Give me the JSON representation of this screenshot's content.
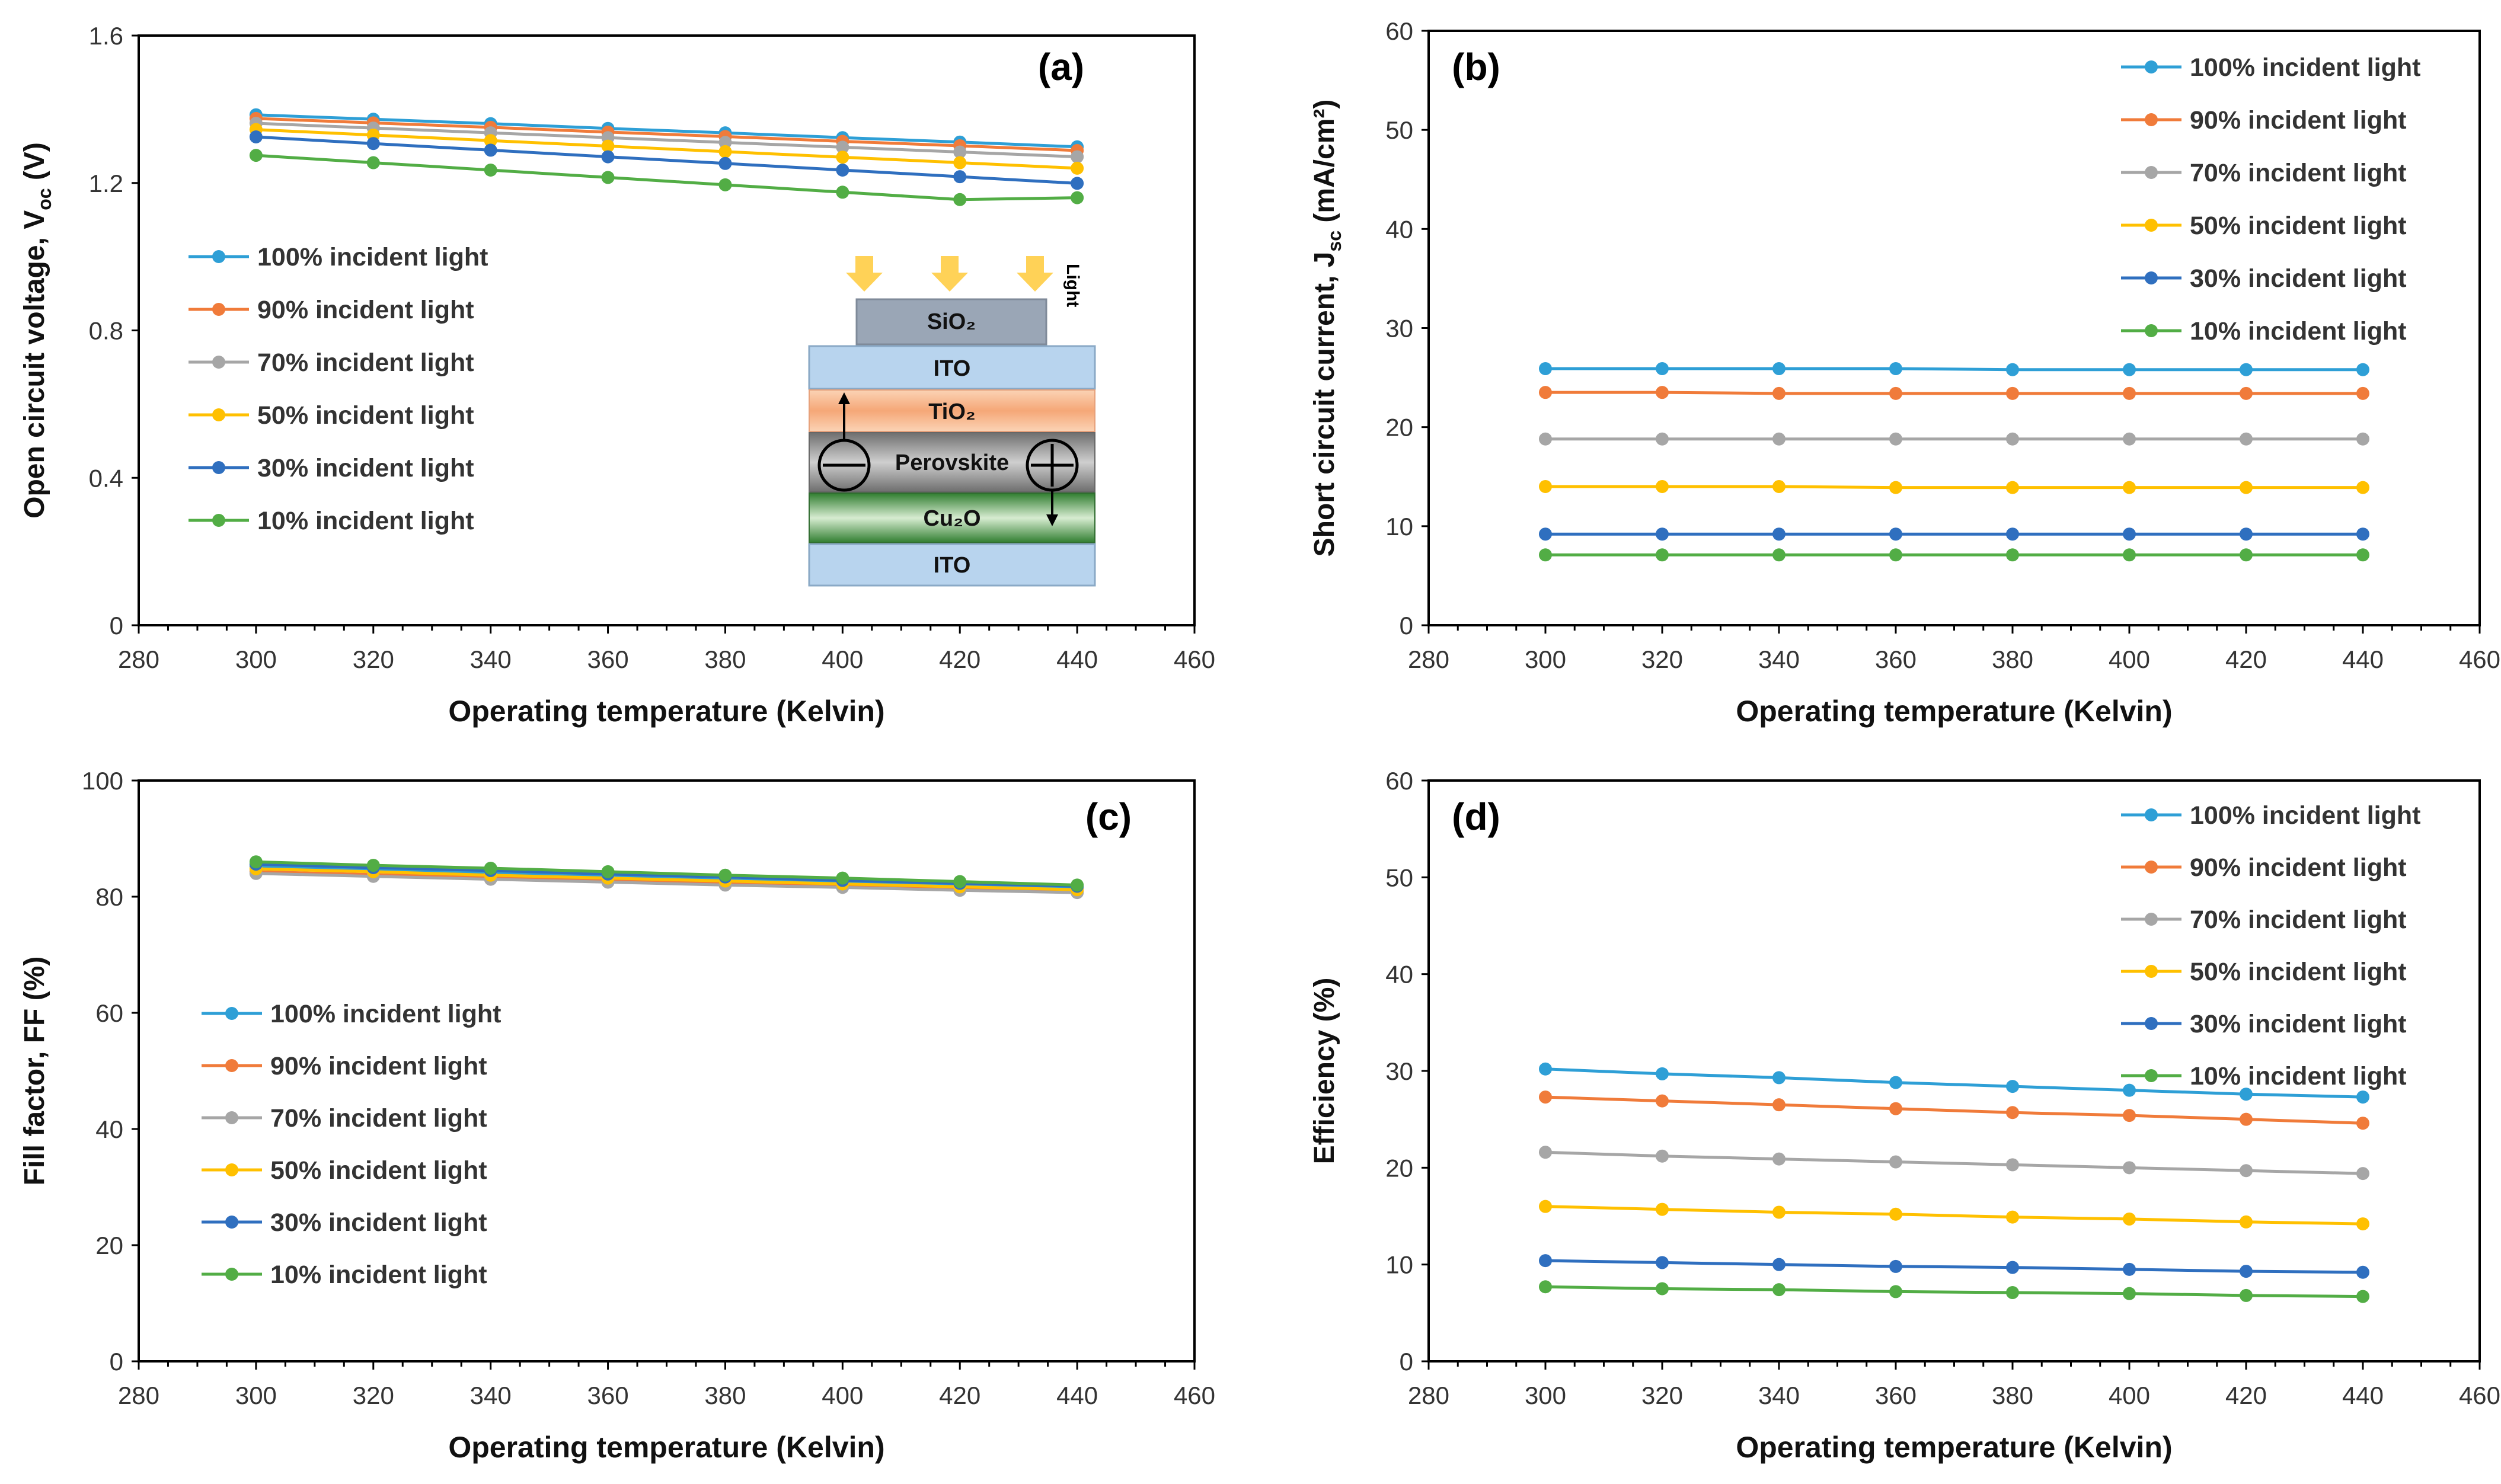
{
  "series_names": [
    "100% incident light",
    "90% incident light",
    "70% incident light",
    "50% incident light",
    "30% incident light",
    "10% incident light"
  ],
  "series_colors": [
    "#2e9fd6",
    "#f07b3a",
    "#a6a6a6",
    "#ffc000",
    "#2f6fbf",
    "#52ad45"
  ],
  "chart_data": [
    {
      "panel_label": "(a)",
      "type": "line",
      "xlabel": "Operating temperature (Kelvin)",
      "ylabel": "Open circuit voltage, V",
      "ylabel_sub": "oc",
      "ylabel_suffix": " (V)",
      "xlim": [
        280,
        460
      ],
      "ylim": [
        0,
        1.6
      ],
      "xticks": [
        280,
        300,
        320,
        340,
        360,
        380,
        400,
        420,
        440,
        460
      ],
      "yticks": [
        0,
        0.4,
        0.8,
        1.2,
        1.6
      ],
      "ytick_labels": [
        "0",
        "0.4",
        "0.8",
        "1.2",
        "1.6"
      ],
      "x": [
        300,
        320,
        340,
        360,
        380,
        400,
        420,
        440
      ],
      "legend_position": "left",
      "series": [
        {
          "name": "100% incident light",
          "values": [
            1.385,
            1.373,
            1.361,
            1.348,
            1.336,
            1.323,
            1.311,
            1.298
          ]
        },
        {
          "name": "90% incident light",
          "values": [
            1.375,
            1.363,
            1.351,
            1.338,
            1.326,
            1.313,
            1.301,
            1.288
          ]
        },
        {
          "name": "70% incident light",
          "values": [
            1.362,
            1.349,
            1.336,
            1.323,
            1.31,
            1.297,
            1.284,
            1.271
          ]
        },
        {
          "name": "50% incident light",
          "values": [
            1.345,
            1.33,
            1.315,
            1.3,
            1.285,
            1.27,
            1.255,
            1.24
          ]
        },
        {
          "name": "30% incident light",
          "values": [
            1.325,
            1.307,
            1.289,
            1.271,
            1.253,
            1.235,
            1.217,
            1.199
          ]
        },
        {
          "name": "10% incident light",
          "values": [
            1.275,
            1.255,
            1.235,
            1.215,
            1.195,
            1.175,
            1.155,
            1.16
          ]
        }
      ]
    },
    {
      "panel_label": "(b)",
      "type": "line",
      "xlabel": "Operating temperature (Kelvin)",
      "ylabel": "Short circuit current, J",
      "ylabel_sub": "sc",
      "ylabel_suffix": " (mA/cm²)",
      "xlim": [
        280,
        460
      ],
      "ylim": [
        0,
        60
      ],
      "xticks": [
        280,
        300,
        320,
        340,
        360,
        380,
        400,
        420,
        440,
        460
      ],
      "yticks": [
        0,
        10,
        20,
        30,
        40,
        50,
        60
      ],
      "ytick_labels": [
        "0",
        "10",
        "20",
        "30",
        "40",
        "50",
        "60"
      ],
      "x": [
        300,
        320,
        340,
        360,
        380,
        400,
        420,
        440
      ],
      "legend_position": "top-right",
      "series": [
        {
          "name": "100% incident light",
          "values": [
            25.9,
            25.9,
            25.9,
            25.9,
            25.8,
            25.8,
            25.8,
            25.8
          ]
        },
        {
          "name": "90% incident light",
          "values": [
            23.5,
            23.5,
            23.4,
            23.4,
            23.4,
            23.4,
            23.4,
            23.4
          ]
        },
        {
          "name": "70% incident light",
          "values": [
            18.8,
            18.8,
            18.8,
            18.8,
            18.8,
            18.8,
            18.8,
            18.8
          ]
        },
        {
          "name": "50% incident light",
          "values": [
            14.0,
            14.0,
            14.0,
            13.9,
            13.9,
            13.9,
            13.9,
            13.9
          ]
        },
        {
          "name": "30% incident light",
          "values": [
            9.2,
            9.2,
            9.2,
            9.2,
            9.2,
            9.2,
            9.2,
            9.2
          ]
        },
        {
          "name": "10% incident light",
          "values": [
            7.1,
            7.1,
            7.1,
            7.1,
            7.1,
            7.1,
            7.1,
            7.1
          ]
        }
      ]
    },
    {
      "panel_label": "(c)",
      "type": "line",
      "xlabel": "Operating temperature (Kelvin)",
      "ylabel": "Fill factor, FF (%)",
      "ylabel_sub": "",
      "ylabel_suffix": "",
      "xlim": [
        280,
        460
      ],
      "ylim": [
        0,
        100
      ],
      "xticks": [
        280,
        300,
        320,
        340,
        360,
        380,
        400,
        420,
        440,
        460
      ],
      "yticks": [
        0,
        20,
        40,
        60,
        80,
        100
      ],
      "ytick_labels": [
        "0",
        "20",
        "40",
        "60",
        "80",
        "100"
      ],
      "x": [
        300,
        320,
        340,
        360,
        380,
        400,
        420,
        440
      ],
      "legend_position": "left",
      "series": [
        {
          "name": "100% incident light",
          "values": [
            85.2,
            84.6,
            84.1,
            83.5,
            82.9,
            82.4,
            81.9,
            81.4
          ]
        },
        {
          "name": "90% incident light",
          "values": [
            84.3,
            83.8,
            83.3,
            82.8,
            82.3,
            81.8,
            81.3,
            80.9
          ]
        },
        {
          "name": "70% incident light",
          "values": [
            84.0,
            83.5,
            83.0,
            82.5,
            82.0,
            81.6,
            81.1,
            80.7
          ]
        },
        {
          "name": "50% incident light",
          "values": [
            84.8,
            84.3,
            83.7,
            83.2,
            82.7,
            82.2,
            81.7,
            81.2
          ]
        },
        {
          "name": "30% incident light",
          "values": [
            85.6,
            85.0,
            84.5,
            83.9,
            83.4,
            82.8,
            82.3,
            81.8
          ]
        },
        {
          "name": "10% incident light",
          "values": [
            86.0,
            85.4,
            84.9,
            84.3,
            83.7,
            83.2,
            82.6,
            82.0
          ]
        }
      ]
    },
    {
      "panel_label": "(d)",
      "type": "line",
      "xlabel": "Operating temperature (Kelvin)",
      "ylabel": "Efficiency (%)",
      "ylabel_sub": "",
      "ylabel_suffix": "",
      "xlim": [
        280,
        460
      ],
      "ylim": [
        0,
        60
      ],
      "xticks": [
        280,
        300,
        320,
        340,
        360,
        380,
        400,
        420,
        440,
        460
      ],
      "yticks": [
        0,
        10,
        20,
        30,
        40,
        50,
        60
      ],
      "ytick_labels": [
        "0",
        "10",
        "20",
        "30",
        "40",
        "50",
        "60"
      ],
      "x": [
        300,
        320,
        340,
        360,
        380,
        400,
        420,
        440
      ],
      "legend_position": "top-right",
      "series": [
        {
          "name": "100% incident light",
          "values": [
            30.2,
            29.7,
            29.3,
            28.8,
            28.4,
            28.0,
            27.6,
            27.3
          ]
        },
        {
          "name": "90% incident light",
          "values": [
            27.3,
            26.9,
            26.5,
            26.1,
            25.7,
            25.4,
            25.0,
            24.6
          ]
        },
        {
          "name": "70% incident light",
          "values": [
            21.6,
            21.2,
            20.9,
            20.6,
            20.3,
            20.0,
            19.7,
            19.4
          ]
        },
        {
          "name": "50% incident light",
          "values": [
            16.0,
            15.7,
            15.4,
            15.2,
            14.9,
            14.7,
            14.4,
            14.2
          ]
        },
        {
          "name": "30% incident light",
          "values": [
            10.4,
            10.2,
            10.0,
            9.8,
            9.7,
            9.5,
            9.3,
            9.2
          ]
        },
        {
          "name": "10% incident light",
          "values": [
            7.7,
            7.5,
            7.4,
            7.2,
            7.1,
            7.0,
            6.8,
            6.7
          ]
        }
      ]
    }
  ],
  "inset": {
    "light_label": "Light",
    "layers": [
      "SiO₂",
      "ITO",
      "TiO₂",
      "Perovskite",
      "Cu₂O",
      "ITO"
    ]
  }
}
